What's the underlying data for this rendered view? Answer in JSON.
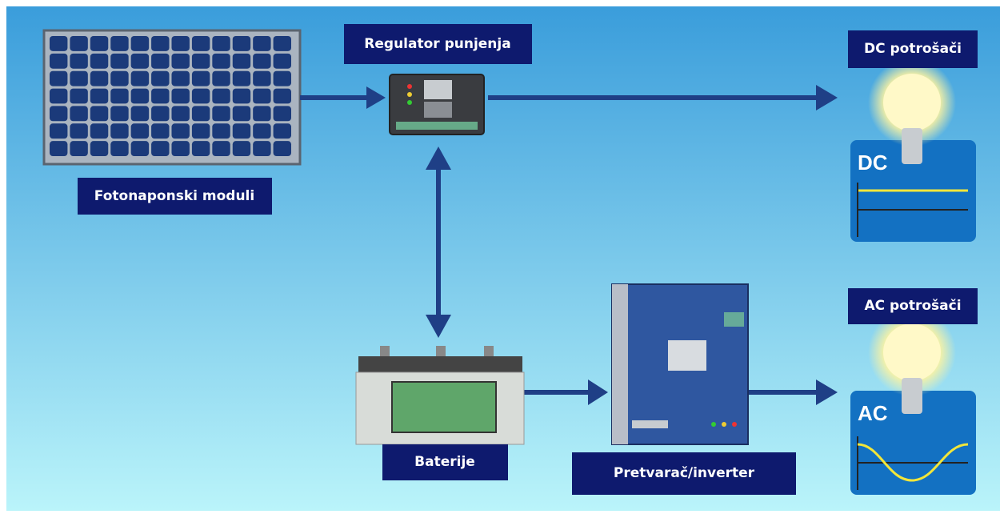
{
  "nodes": [
    {
      "label": "Fotonaponski moduli"
    },
    {
      "label": "Regulator punjenja"
    },
    {
      "label": "DC potrošači",
      "panel": "DC"
    },
    {
      "label": "Baterije"
    },
    {
      "label": "Pretvarač/inverter"
    },
    {
      "label": "AC potrošači",
      "panel": "AC"
    }
  ]
}
